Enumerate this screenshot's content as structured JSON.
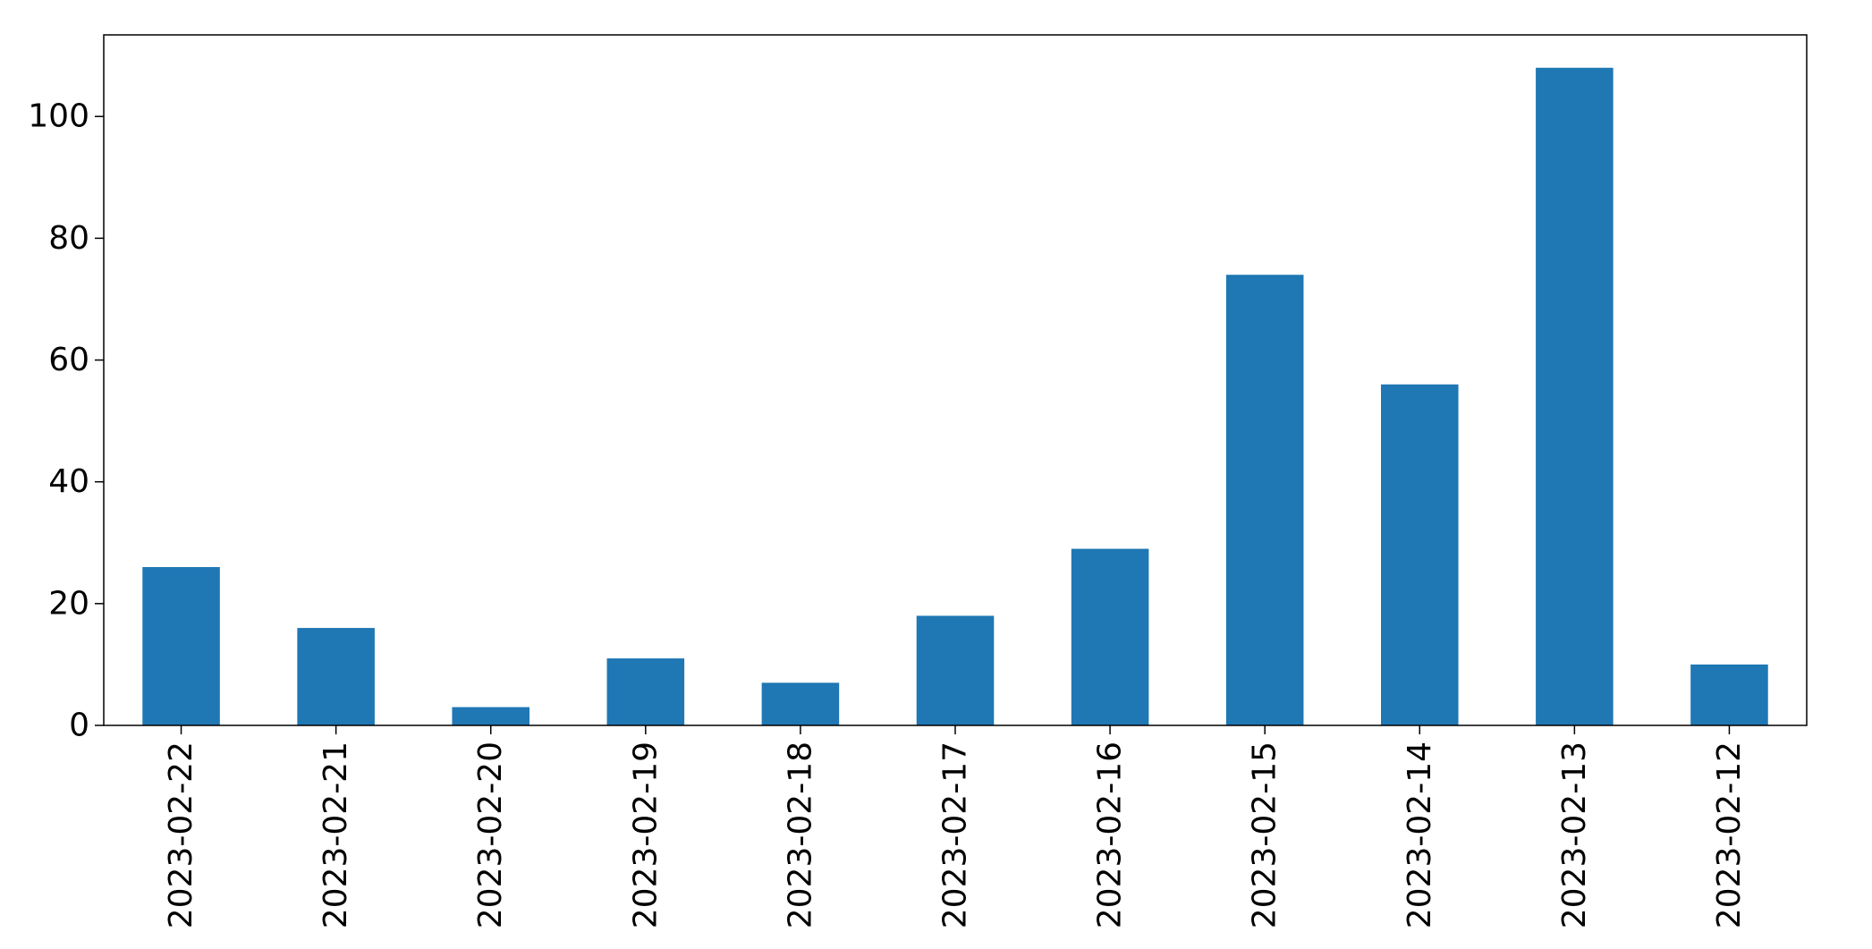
{
  "chart_data": {
    "type": "bar",
    "title": "",
    "xlabel": "",
    "ylabel": "",
    "categories": [
      "2023-02-22",
      "2023-02-21",
      "2023-02-20",
      "2023-02-19",
      "2023-02-18",
      "2023-02-17",
      "2023-02-16",
      "2023-02-15",
      "2023-02-14",
      "2023-02-13",
      "2023-02-12"
    ],
    "values": [
      26,
      16,
      3,
      11,
      7,
      18,
      29,
      74,
      56,
      108,
      10
    ],
    "ylim": [
      0,
      113.4
    ],
    "yticks": [
      "0",
      "20",
      "40",
      "60",
      "80",
      "100"
    ],
    "bar_color": "#1f77b4",
    "grid": false,
    "legend": "none"
  }
}
